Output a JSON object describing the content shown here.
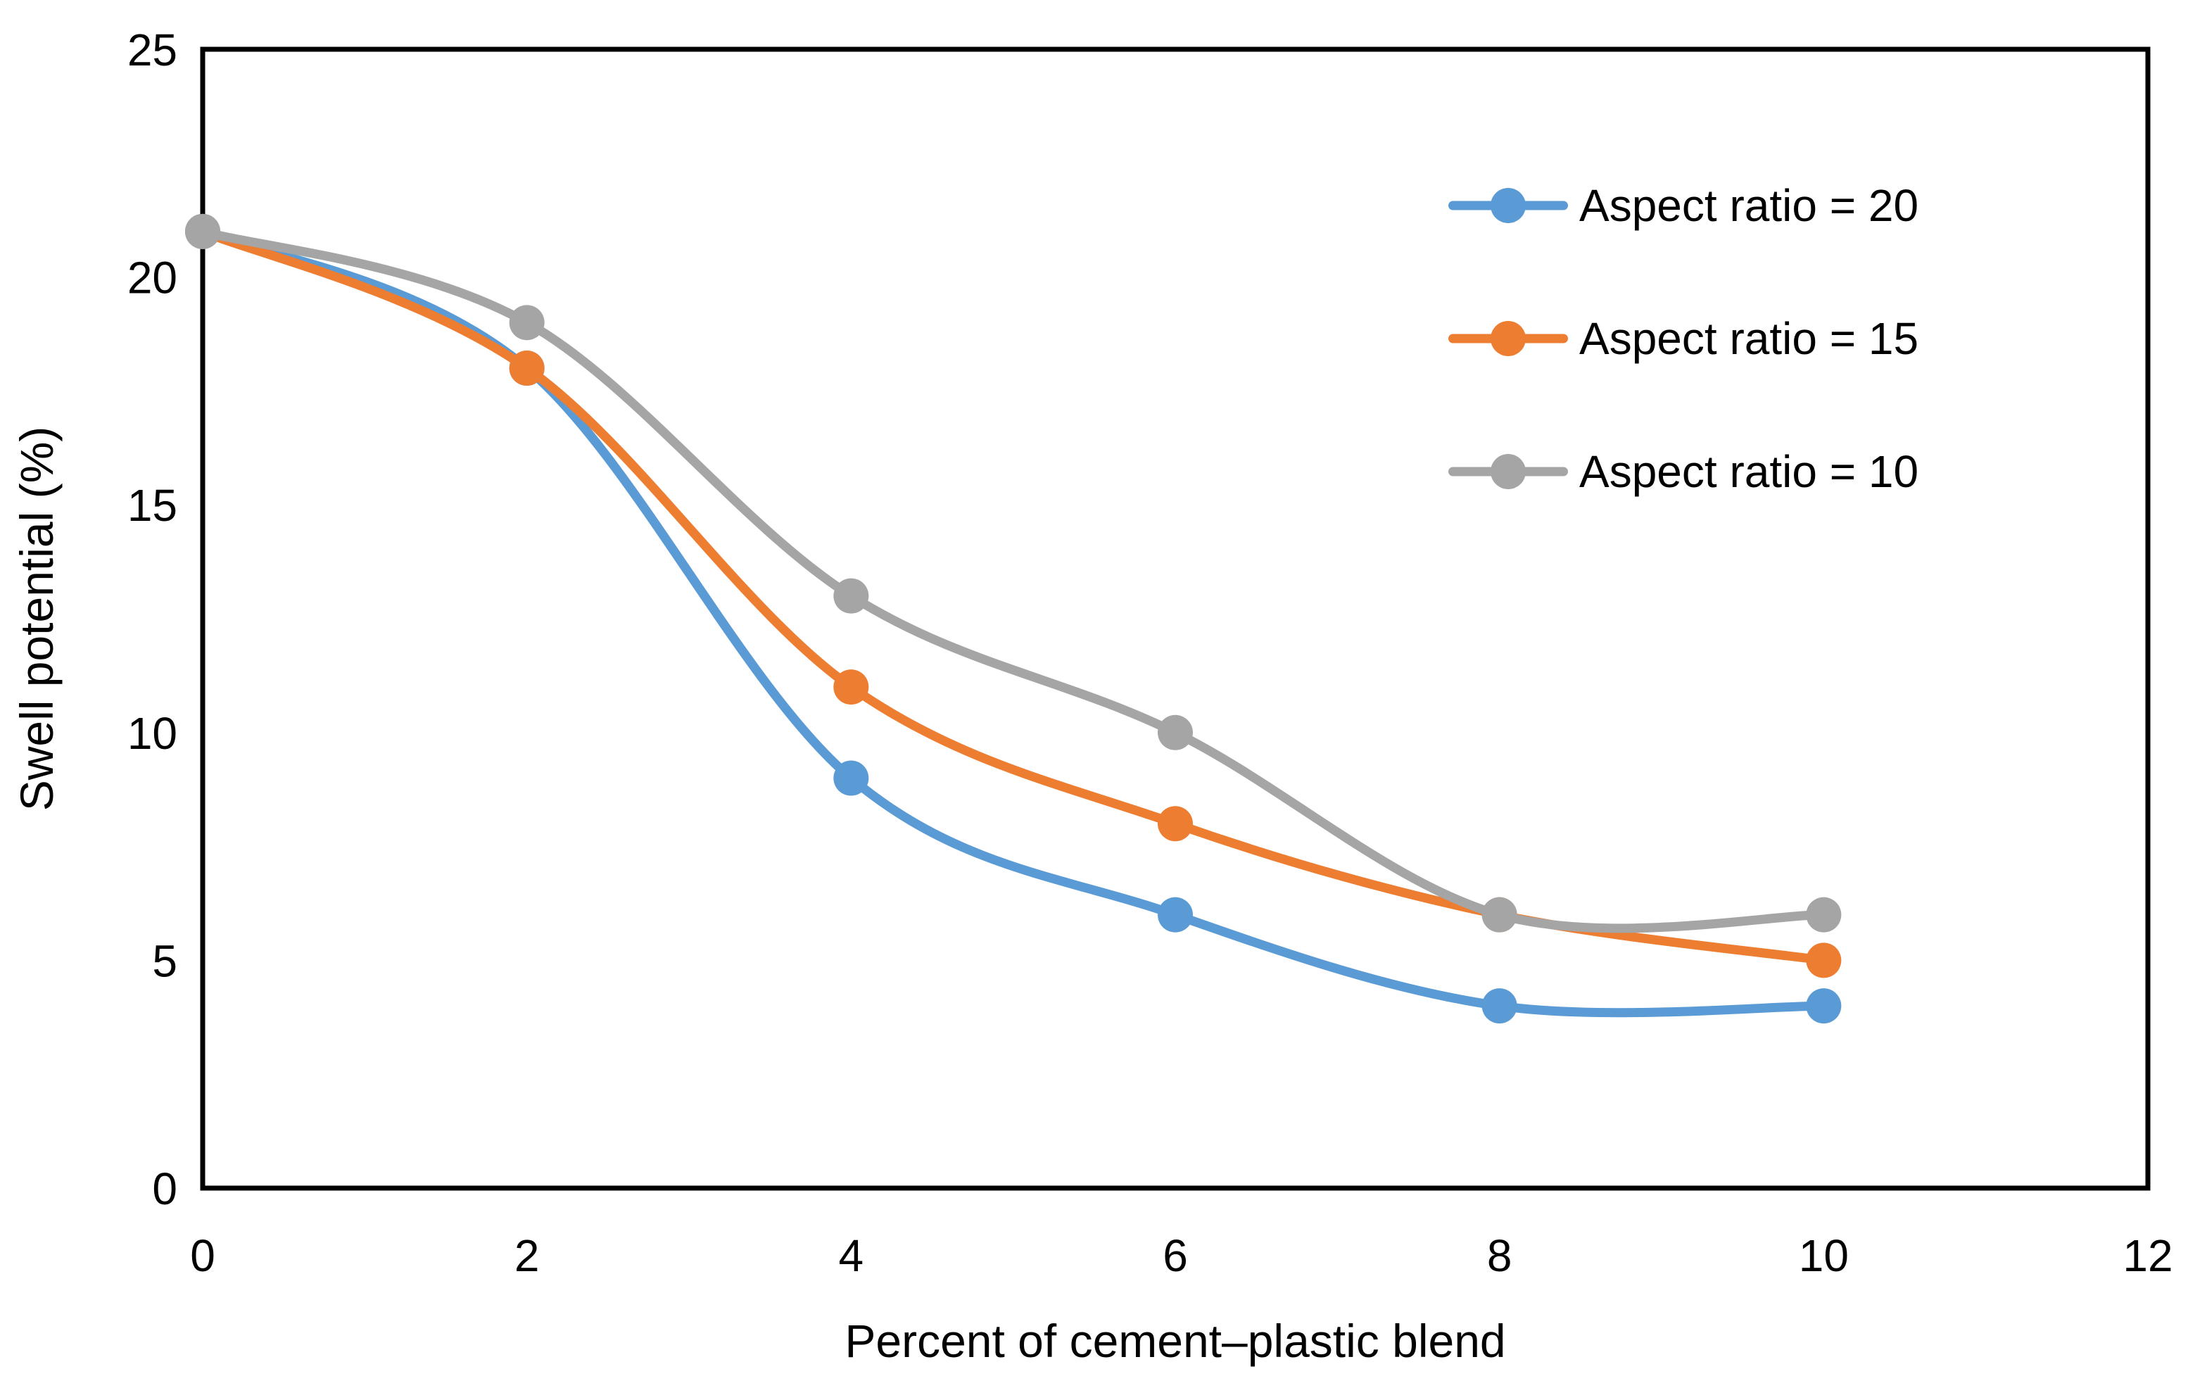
{
  "chart_data": {
    "type": "line",
    "title": "",
    "xlabel": "Percent of cement–plastic blend",
    "ylabel": "Swell potential (%)",
    "x": [
      0,
      2,
      4,
      6,
      8,
      10
    ],
    "series": [
      {
        "name": "Aspect ratio = 20",
        "color": "#5B9BD5",
        "values": [
          21,
          18,
          9,
          6,
          4,
          4
        ]
      },
      {
        "name": "Aspect ratio = 15",
        "color": "#ED7D31",
        "values": [
          21,
          18,
          11,
          8,
          6,
          5
        ]
      },
      {
        "name": "Aspect ratio = 10",
        "color": "#A5A5A5",
        "values": [
          21,
          19,
          13,
          10,
          6,
          6
        ]
      }
    ],
    "xlim": [
      0,
      12
    ],
    "ylim": [
      0,
      25
    ],
    "xticks": [
      0,
      2,
      4,
      6,
      8,
      10,
      12
    ],
    "yticks": [
      0,
      5,
      10,
      15,
      20,
      25
    ],
    "grid": false,
    "smooth_lines": true,
    "marker": "circle",
    "legend_position": "upper-right-inside",
    "axis_color": "#000000",
    "text_color": "#000000",
    "background_color": "#FFFFFF"
  }
}
